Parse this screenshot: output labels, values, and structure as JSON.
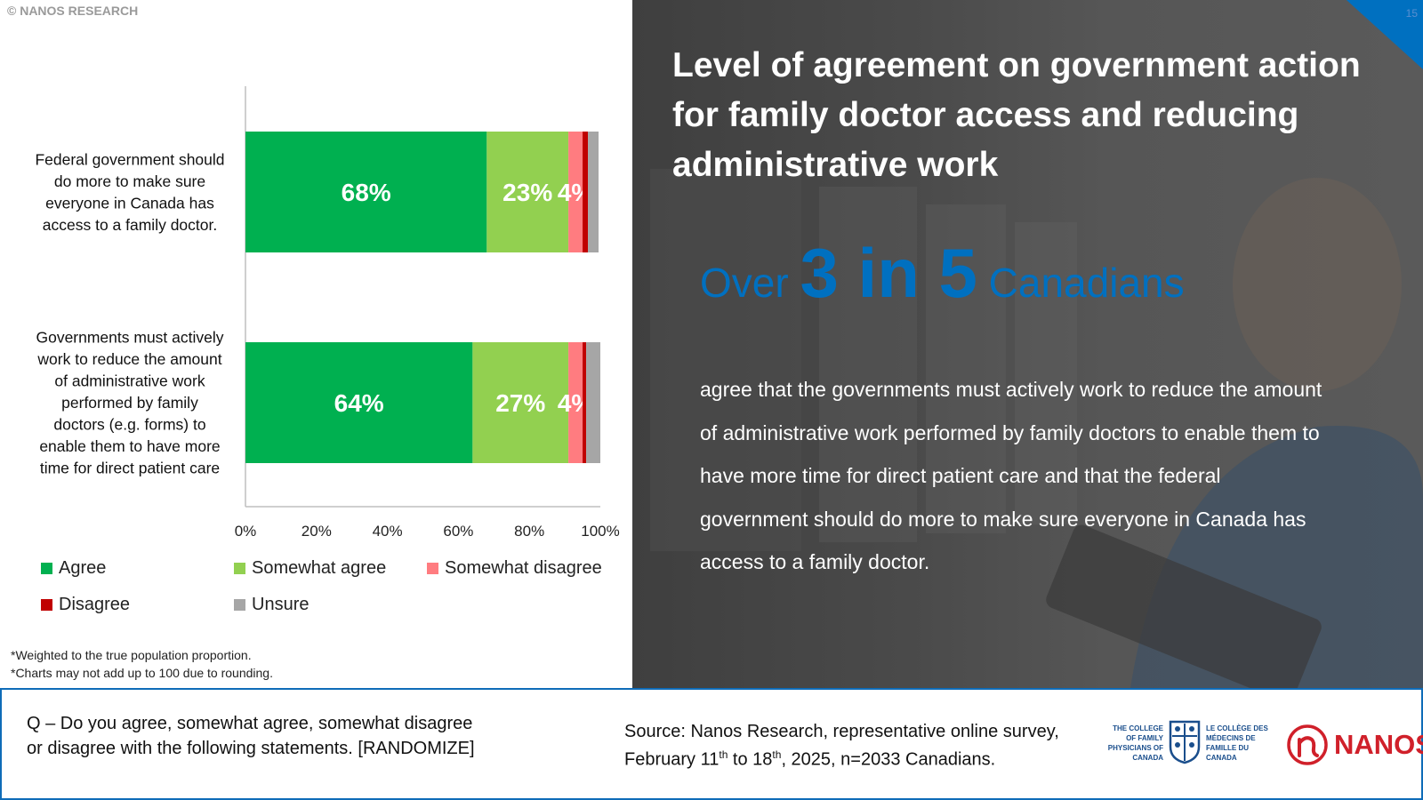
{
  "copyright": "© NANOS RESEARCH",
  "chart_data": {
    "type": "bar",
    "orientation": "horizontal",
    "stacked": true,
    "categories": [
      "Federal government should do more to make sure everyone in Canada has access to a family doctor.",
      "Governments must actively work to reduce the amount of administrative work performed by family doctors (e.g. forms) to enable them to have more time for direct patient care"
    ],
    "category_lines": [
      [
        "Federal government should",
        "do more to make sure",
        "everyone in Canada has",
        "access to a family doctor."
      ],
      [
        "Governments must actively",
        "work to reduce the amount",
        "of administrative work",
        "performed by family",
        "doctors (e.g. forms) to",
        "enable them to have more",
        "time for direct patient care"
      ]
    ],
    "series": [
      {
        "name": "Agree",
        "values": [
          68,
          64
        ],
        "labels": [
          "68%",
          "64%"
        ],
        "color": "#00b050"
      },
      {
        "name": "Somewhat agree",
        "values": [
          23,
          27
        ],
        "labels": [
          "23%",
          "27%"
        ],
        "color": "#92d050"
      },
      {
        "name": "Somewhat disagree",
        "values": [
          4,
          4
        ],
        "labels": [
          "4%",
          "4%"
        ],
        "color": "#ff7c80"
      },
      {
        "name": "Disagree",
        "values": [
          1.5,
          1
        ],
        "labels": [
          "",
          ""
        ],
        "color": "#c00000"
      },
      {
        "name": "Unsure",
        "values": [
          3,
          4
        ],
        "labels": [
          "",
          ""
        ],
        "color": "#a6a6a6"
      }
    ],
    "xlim": [
      0,
      100
    ],
    "xticks": [
      "0%",
      "20%",
      "40%",
      "60%",
      "80%",
      "100%"
    ],
    "grid": false,
    "legend": "bottom"
  },
  "footnotes": [
    "*Weighted to the true population proportion.",
    "*Charts may not add up to 100 due to rounding."
  ],
  "panel": {
    "title": "Level of agreement on government action for family doctor access and reducing administrative work",
    "headline_pre": "Over ",
    "headline_big": "3 in 5",
    "headline_post": " Canadians",
    "body": "agree that the governments must actively work to reduce the amount of administrative work performed by family doctors to enable them to have more time for direct patient care and that the federal government should do more to make sure everyone in Canada has access to a family doctor.",
    "page_number": "15"
  },
  "footer": {
    "question": "Q – Do you agree, somewhat agree, somewhat disagree or disagree with the following statements. [RANDOMIZE]",
    "source_pre": "Source: Nanos Research, representative online survey, February 11",
    "source_sup1": "th",
    "source_mid": " to 18",
    "source_sup2": "th",
    "source_post": ", 2025, n=2033 Canadians.",
    "cfpc_en": "THE COLLEGE OF FAMILY PHYSICIANS OF CANADA",
    "cfpc_fr": "LE COLLÈGE DES MÉDECINS DE FAMILLE DU CANADA",
    "nanos_logo": "NANOS"
  },
  "colors": {
    "accent": "#0070c0",
    "footer_border": "#0f6cb8",
    "brand_red": "#d0202a"
  }
}
